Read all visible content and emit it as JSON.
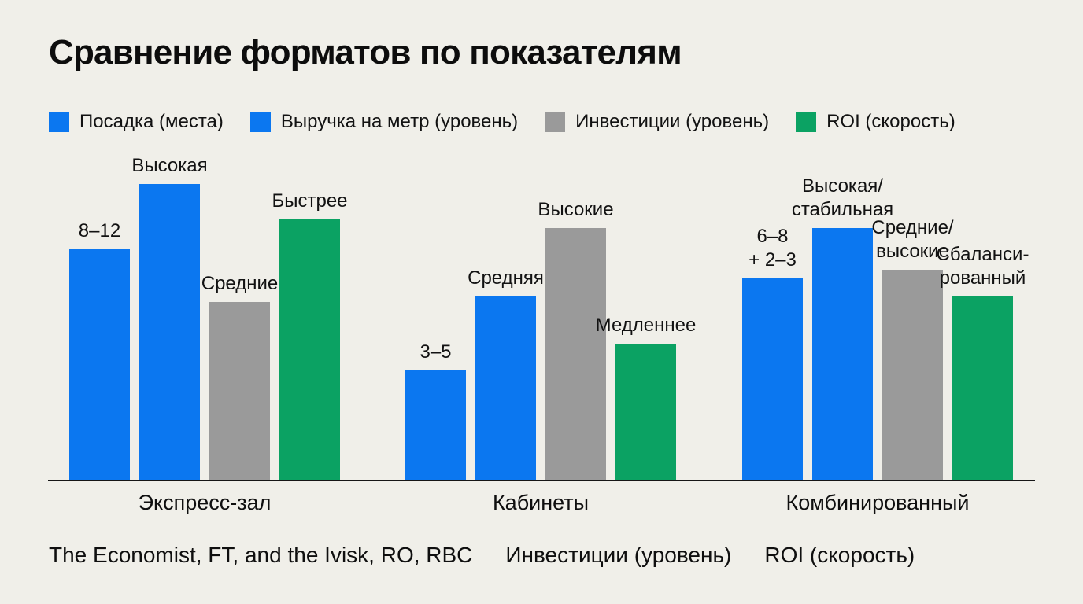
{
  "page": {
    "background_color": "#f0efe9",
    "text_color": "#111111",
    "axis_color": "#161616"
  },
  "chart_data": {
    "type": "bar",
    "title": "Сравнение форматов по показателям",
    "categories": [
      "Экспресс-зал",
      "Кабинеты",
      "Комбинированный"
    ],
    "series": [
      {
        "name": "Посадка (места)",
        "color": "#0b77f0",
        "values": [
          78,
          37,
          68
        ],
        "bar_labels": [
          "8–12",
          "3–5",
          "6–8\n+ 2–3"
        ]
      },
      {
        "name": "Выручка на метр (уровень)",
        "color": "#0b77f0",
        "values": [
          100,
          62,
          85
        ],
        "bar_labels": [
          "Высокая",
          "Средняя",
          "Высокая/\nстабильная"
        ]
      },
      {
        "name": "Инвестиции (уровень)",
        "color": "#9a9a9a",
        "values": [
          60,
          85,
          71
        ],
        "bar_labels": [
          "Средние",
          "Высокие",
          "Средние/\nвысокие"
        ]
      },
      {
        "name": "ROI (скорость)",
        "color": "#0ba263",
        "values": [
          88,
          46,
          62
        ],
        "bar_labels": [
          "Быстрее",
          "Медленнее",
          "Сбаланси-\nрованный"
        ]
      }
    ],
    "ylim": [
      0,
      100
    ],
    "grid": false,
    "legend_position": "top-left",
    "value_axis": "hidden — qualitative levels shown as labels above bars"
  },
  "footer": {
    "segments": [
      "The Economist, FT, and the Ivisk, RO, RBC",
      "Инвестиции (уровень)",
      "ROI (скорость)"
    ]
  }
}
